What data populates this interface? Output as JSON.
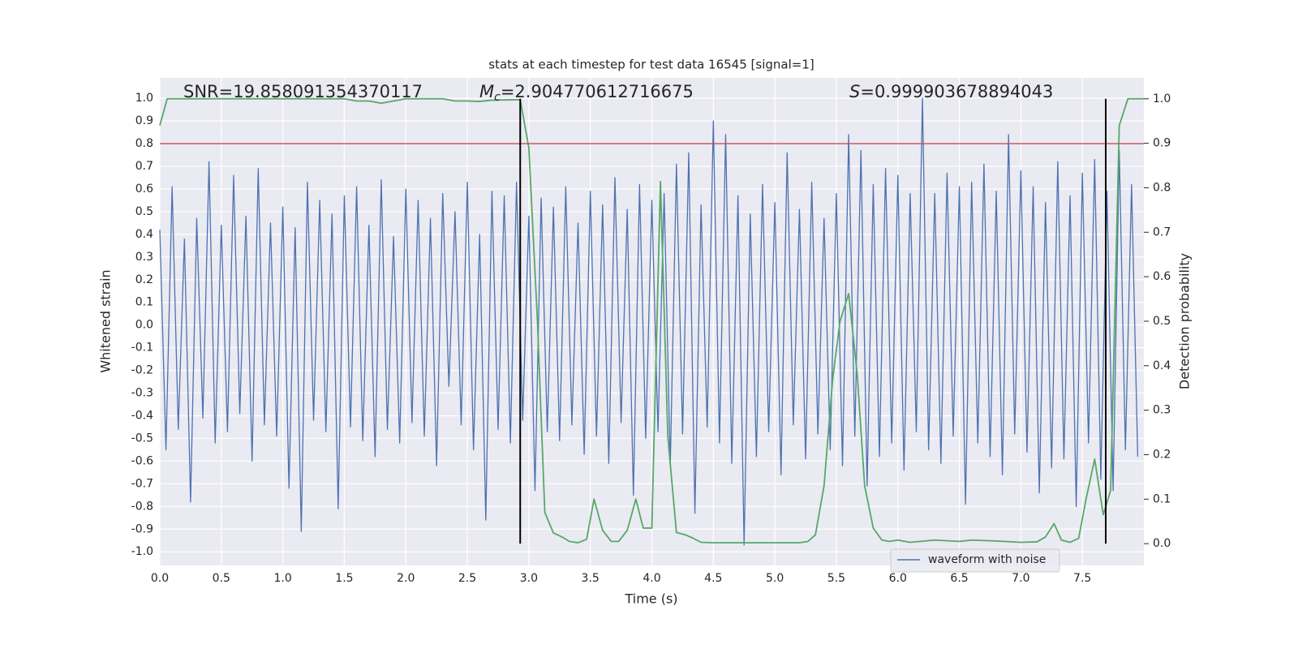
{
  "chart_data": {
    "type": "line",
    "title": "stats at each timestep for test data 16545 [signal=1]",
    "xlabel": "Time (s)",
    "ylabel": "Whitened strain",
    "y2label": "Detection probability",
    "annotations": [
      {
        "parts": [
          "SNR=19.858091354370117"
        ]
      },
      {
        "parts": [
          "M",
          "c",
          "=2.904770612716675"
        ]
      },
      {
        "parts": [
          "S",
          "=0.999903678894043"
        ]
      }
    ],
    "xlim": [
      0,
      8
    ],
    "ylim": [
      -1.06,
      1.09
    ],
    "y2lim": [
      -0.049,
      1.047
    ],
    "xticks": [
      {
        "value": 0,
        "label": "0.0"
      },
      0.5,
      {
        "value": 1,
        "label": "1.0"
      },
      1.5,
      {
        "value": 2,
        "label": "2.0"
      },
      2.5,
      {
        "value": 3,
        "label": "3.0"
      },
      3.5,
      {
        "value": 4,
        "label": "4.0"
      },
      4.5,
      {
        "value": 5,
        "label": "5.0"
      },
      5.5,
      {
        "value": 6,
        "label": "6.0"
      },
      6.5,
      {
        "value": 7,
        "label": "7.0"
      },
      7.5
    ],
    "yticks": [
      {
        "value": 1,
        "label": "1.0"
      },
      0.9,
      0.8,
      0.7,
      0.6,
      0.5,
      0.4,
      0.3,
      0.2,
      0.1,
      {
        "value": 0,
        "label": "0.0"
      },
      -0.1,
      -0.2,
      -0.3,
      -0.4,
      -0.5,
      -0.6,
      -0.7,
      -0.8,
      -0.9,
      {
        "value": -1,
        "label": "-1.0"
      }
    ],
    "y2ticks": [
      {
        "value": 0,
        "label": "0.0"
      },
      0.1,
      0.2,
      0.3,
      0.4,
      0.5,
      0.6,
      0.7,
      0.8,
      0.9,
      {
        "value": 1,
        "label": "1.0"
      }
    ],
    "grid": true,
    "legend": "lower right",
    "series": [
      {
        "name": "waveform with noise",
        "color": "#4c72b0",
        "x": [
          0,
          0.05,
          0.1,
          0.15,
          0.2,
          0.25,
          0.3,
          0.35,
          0.4,
          0.45,
          0.5,
          0.55,
          0.6,
          0.65,
          0.7,
          0.75,
          0.8,
          0.85,
          0.9,
          0.95,
          1,
          1.05,
          1.1,
          1.15,
          1.2,
          1.25,
          1.3,
          1.35,
          1.4,
          1.45,
          1.5,
          1.55,
          1.6,
          1.65,
          1.7,
          1.75,
          1.8,
          1.85,
          1.9,
          1.95,
          2,
          2.05,
          2.1,
          2.15,
          2.2,
          2.25,
          2.3,
          2.35,
          2.4,
          2.45,
          2.5,
          2.55,
          2.6,
          2.65,
          2.7,
          2.75,
          2.8,
          2.85,
          2.9,
          2.95,
          3,
          3.05,
          3.1,
          3.15,
          3.2,
          3.25,
          3.3,
          3.35,
          3.4,
          3.45,
          3.5,
          3.55,
          3.6,
          3.65,
          3.7,
          3.75,
          3.8,
          3.85,
          3.9,
          3.95,
          4,
          4.05,
          4.1,
          4.15,
          4.2,
          4.25,
          4.3,
          4.35,
          4.4,
          4.45,
          4.5,
          4.55,
          4.6,
          4.65,
          4.7,
          4.75,
          4.8,
          4.85,
          4.9,
          4.95,
          5,
          5.05,
          5.1,
          5.15,
          5.2,
          5.25,
          5.3,
          5.35,
          5.4,
          5.45,
          5.5,
          5.55,
          5.6,
          5.65,
          5.7,
          5.75,
          5.8,
          5.85,
          5.9,
          5.95,
          6,
          6.05,
          6.1,
          6.15,
          6.2,
          6.25,
          6.3,
          6.35,
          6.4,
          6.45,
          6.5,
          6.55,
          6.6,
          6.65,
          6.7,
          6.75,
          6.8,
          6.85,
          6.9,
          6.95,
          7,
          7.05,
          7.1,
          7.15,
          7.2,
          7.25,
          7.3,
          7.35,
          7.4,
          7.45,
          7.5,
          7.55,
          7.6,
          7.65,
          7.7,
          7.75,
          7.8,
          7.85,
          7.9,
          7.95
        ],
        "values": [
          0.42,
          -0.55,
          0.61,
          -0.46,
          0.38,
          -0.78,
          0.47,
          -0.41,
          0.72,
          -0.52,
          0.44,
          -0.47,
          0.66,
          -0.39,
          0.48,
          -0.6,
          0.69,
          -0.44,
          0.45,
          -0.49,
          0.52,
          -0.72,
          0.43,
          -0.91,
          0.63,
          -0.42,
          0.55,
          -0.47,
          0.49,
          -0.81,
          0.57,
          -0.45,
          0.61,
          -0.51,
          0.44,
          -0.58,
          0.64,
          -0.46,
          0.39,
          -0.52,
          0.6,
          -0.43,
          0.55,
          -0.49,
          0.47,
          -0.62,
          0.58,
          -0.27,
          0.5,
          -0.44,
          0.63,
          -0.55,
          0.4,
          -0.86,
          0.59,
          -0.46,
          0.57,
          -0.52,
          0.63,
          -0.42,
          0.48,
          -0.73,
          0.56,
          -0.47,
          0.52,
          -0.51,
          0.61,
          -0.44,
          0.45,
          -0.57,
          0.59,
          -0.49,
          0.53,
          -0.61,
          0.65,
          -0.43,
          0.51,
          -0.75,
          0.62,
          -0.5,
          0.55,
          -0.47,
          0.58,
          -0.62,
          0.71,
          -0.48,
          0.76,
          -0.83,
          0.53,
          -0.45,
          0.9,
          -0.52,
          0.84,
          -0.61,
          0.57,
          -0.97,
          0.49,
          -0.58,
          0.62,
          -0.47,
          0.54,
          -0.66,
          0.76,
          -0.44,
          0.51,
          -0.59,
          0.63,
          -0.48,
          0.47,
          -0.55,
          0.58,
          -0.62,
          0.84,
          -0.49,
          0.77,
          -0.71,
          0.62,
          -0.58,
          0.69,
          -0.52,
          0.66,
          -0.64,
          0.58,
          -0.47,
          1.0,
          -0.55,
          0.58,
          -0.61,
          0.67,
          -0.49,
          0.61,
          -0.79,
          0.63,
          -0.52,
          0.71,
          -0.58,
          0.59,
          -0.66,
          0.84,
          -0.48,
          0.68,
          -0.56,
          0.61,
          -0.74,
          0.54,
          -0.63,
          0.72,
          -0.59,
          0.57,
          -0.8,
          0.67,
          -0.52,
          0.73,
          -0.68,
          0.59,
          -0.73,
          0.77,
          -0.55,
          0.62,
          -0.58
        ]
      },
      {
        "color": "#55a868",
        "axis": "y2",
        "x": [
          0,
          0.06,
          0.2,
          0.5,
          1,
          1.5,
          1.6,
          1.7,
          1.8,
          1.9,
          2,
          2.3,
          2.4,
          2.5,
          2.6,
          2.7,
          2.93,
          3,
          3.07,
          3.13,
          3.2,
          3.27,
          3.33,
          3.4,
          3.47,
          3.53,
          3.6,
          3.67,
          3.73,
          3.8,
          3.87,
          3.93,
          4,
          4.07,
          4.13,
          4.2,
          4.27,
          4.33,
          4.4,
          4.5,
          4.8,
          5.2,
          5.27,
          5.33,
          5.4,
          5.47,
          5.53,
          5.6,
          5.67,
          5.73,
          5.8,
          5.87,
          5.93,
          6,
          6.1,
          6.3,
          6.5,
          6.6,
          6.8,
          7,
          7.13,
          7.2,
          7.27,
          7.33,
          7.4,
          7.47,
          7.53,
          7.6,
          7.67,
          7.73,
          7.8,
          7.87,
          7.93,
          8
        ],
        "values": [
          0.94,
          1.0,
          1.0,
          1.0,
          1.0,
          1.0,
          0.995,
          0.995,
          0.99,
          0.995,
          1.0,
          1.0,
          0.995,
          0.995,
          0.994,
          0.997,
          0.998,
          0.89,
          0.5,
          0.07,
          0.024,
          0.015,
          0.005,
          0.002,
          0.01,
          0.1,
          0.03,
          0.005,
          0.005,
          0.03,
          0.1,
          0.035,
          0.035,
          0.814,
          0.24,
          0.025,
          0.02,
          0.013,
          0.003,
          0.002,
          0.002,
          0.002,
          0.005,
          0.02,
          0.13,
          0.37,
          0.5,
          0.562,
          0.38,
          0.13,
          0.035,
          0.008,
          0.005,
          0.008,
          0.003,
          0.008,
          0.005,
          0.008,
          0.006,
          0.003,
          0.004,
          0.015,
          0.045,
          0.008,
          0.003,
          0.012,
          0.1,
          0.19,
          0.065,
          0.12,
          0.94,
          1.0,
          1.0,
          1.0
        ]
      }
    ],
    "hline": {
      "value": 0.8,
      "color": "#c44e52"
    },
    "vlines": {
      "values": [
        2.93,
        7.69
      ],
      "color": "#000000"
    }
  }
}
